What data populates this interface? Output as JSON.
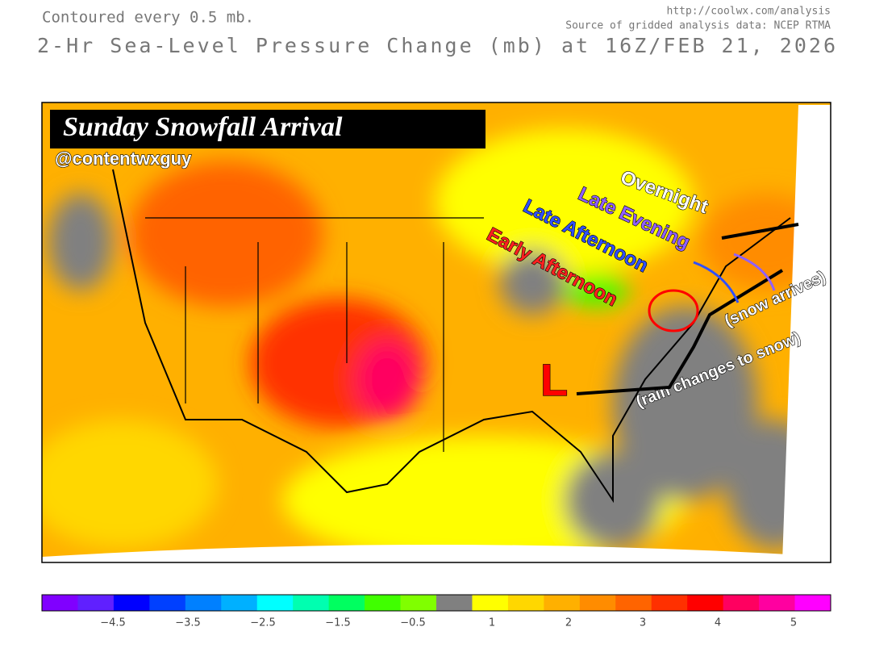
{
  "header": {
    "contour_note": "Contoured every 0.5 mb.",
    "url": "http://coolwx.com/analysis",
    "source": "Source of gridded analysis data:  NCEP RTMA",
    "title": "2-Hr Sea-Level Pressure Change (mb) at 16Z/FEB 21, 2026"
  },
  "annotations": {
    "headline": "Sunday Snowfall Arrival",
    "handle": "@contentwxguy",
    "overnight": "Overnight",
    "late_evening": "Late Evening",
    "late_afternoon": "Late Afternoon",
    "early_afternoon": "Early Afternoon",
    "snow_arrives": "(snow arrives)",
    "rain_changes": "(rain changes to snow)",
    "low": "L"
  },
  "colorbar": {
    "colors": [
      "#8000ff",
      "#6020ff",
      "#0000ff",
      "#0040ff",
      "#0080ff",
      "#00b0ff",
      "#00ffff",
      "#00ffb0",
      "#00ff60",
      "#40ff00",
      "#80ff00",
      "#808080",
      "#ffff00",
      "#ffd700",
      "#ffb000",
      "#ff8c00",
      "#ff6400",
      "#ff3000",
      "#ff0000",
      "#ff0060",
      "#ff00a0",
      "#ff00ff"
    ],
    "ticks": [
      "−4.5",
      "−3.5",
      "−2.5",
      "−1.5",
      "−0.5",
      "1",
      "2",
      "3",
      "4",
      "5"
    ]
  }
}
